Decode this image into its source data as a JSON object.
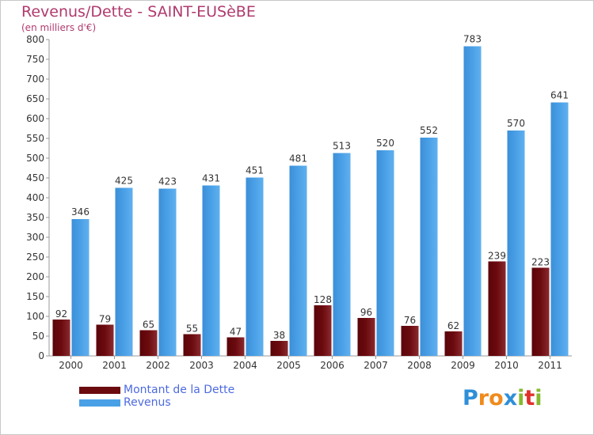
{
  "header": {
    "title": "Revenus/Dette - SAINT-EUSèBE",
    "subtitle": "(en milliers d'€)"
  },
  "colors": {
    "dette": "#6b0a0f",
    "revenus": "#4aa0e6",
    "title": "#b03a6e",
    "legend_text": "#4d6ae0"
  },
  "legend": {
    "dette_label": "Montant de la Dette",
    "revenus_label": "Revenus"
  },
  "logo": {
    "letters": [
      "P",
      "r",
      "o",
      "x",
      "i",
      "t",
      "i"
    ],
    "colors": [
      "#2f8fd8",
      "#f08a1c",
      "#f08a1c",
      "#2f8fd8",
      "#86b92e",
      "#e0312a",
      "#86b92e"
    ]
  },
  "chart_data": {
    "type": "bar",
    "categories": [
      "2000",
      "2001",
      "2002",
      "2003",
      "2004",
      "2005",
      "2006",
      "2007",
      "2008",
      "2009",
      "2010",
      "2011"
    ],
    "series": [
      {
        "name": "Montant de la Dette",
        "values": [
          92,
          79,
          65,
          55,
          47,
          38,
          128,
          96,
          76,
          62,
          239,
          223
        ]
      },
      {
        "name": "Revenus",
        "values": [
          346,
          425,
          423,
          431,
          451,
          481,
          513,
          520,
          552,
          783,
          570,
          641
        ]
      }
    ],
    "ylim": [
      0,
      800
    ],
    "yticks": [
      0,
      50,
      100,
      150,
      200,
      250,
      300,
      350,
      400,
      450,
      500,
      550,
      600,
      650,
      700,
      750,
      800
    ],
    "grid": false,
    "legend_position": "bottom-left"
  }
}
